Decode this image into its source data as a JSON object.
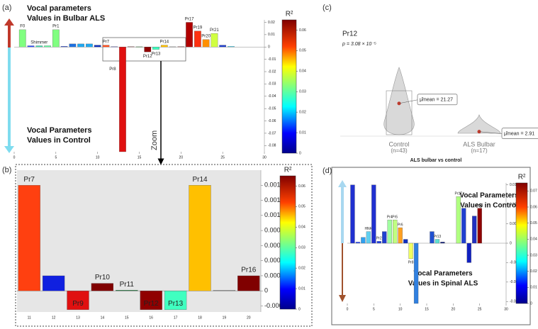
{
  "chart_data": [
    {
      "panel": "(a)",
      "type": "bar",
      "x": [
        1,
        2,
        3,
        4,
        5,
        6,
        7,
        8,
        9,
        10,
        11,
        12,
        13,
        14,
        15,
        16,
        17,
        18,
        19,
        20,
        21,
        22,
        23,
        24,
        25,
        26
      ],
      "values": [
        0.014,
        0.001,
        0.001,
        0.001,
        0.014,
        0.0005,
        0.0025,
        0.0025,
        0.0025,
        0.0015,
        0.0015,
        0.0003,
        -0.085,
        0.0003,
        0.0002,
        -0.004,
        -0.002,
        0.0015,
        0.0002,
        0.0003,
        0.02,
        0.013,
        0.006,
        0.011,
        0.0015,
        0.0005
      ],
      "colors": [
        "#80ff80",
        "#3050ff",
        "#40e0b0",
        "#60ffa0",
        "#80ff80",
        "#2040e0",
        "#1e70e0",
        "#20a8f0",
        "#20a8f0",
        "#1030c0",
        "#ff5020",
        "#2020e0",
        "#e01010",
        "#800000",
        "#40a040",
        "#900000",
        "#40ffc0",
        "#ffc000",
        "#a0a0a0",
        "#800000",
        "#b00000",
        "#ff3010",
        "#ff9000",
        "#d0ff40",
        "#2040d0",
        "#40e0ff"
      ],
      "labels": [
        "F0",
        null,
        "Shimmer",
        null,
        "Pr1",
        null,
        null,
        null,
        null,
        null,
        "Pr7",
        null,
        "Pr8",
        null,
        null,
        "Pr12",
        "Pr13",
        "Pr14",
        null,
        null,
        "Pr17",
        "Pr19",
        "Pr20",
        "Pr21",
        null,
        null
      ],
      "xlim": [
        0,
        30
      ],
      "xticks": [
        0,
        5,
        10,
        15,
        20,
        25,
        30
      ],
      "ylim": [
        -0.085,
        0.022
      ],
      "yticks": [
        0.02,
        0.01,
        0,
        -0.01,
        -0.02,
        -0.03,
        -0.04,
        -0.05,
        -0.06,
        -0.07,
        -0.08
      ],
      "annotations": [
        "Vocal parameters",
        "Values in Bulbar ALS",
        "Vocal Parameters",
        "Values in Control",
        "Zoom"
      ],
      "colorbar": {
        "label": "R²",
        "lim": [
          0,
          0.065
        ],
        "ticks": [
          0,
          0.01,
          0.02,
          0.03,
          0.04,
          0.05,
          0.06
        ]
      }
    },
    {
      "panel": "(b)",
      "type": "bar",
      "categories": [
        "11",
        "12",
        "13",
        "14",
        "15",
        "16",
        "17",
        "18",
        "19",
        "20"
      ],
      "values": [
        0.0014,
        0.0002,
        -0.00025,
        0.0001,
        1e-05,
        -0.00025,
        -0.00025,
        0.0014,
        1e-05,
        0.0002
      ],
      "colors": [
        "#ff4010",
        "#1020e0",
        "#e01010",
        "#800000",
        "#208040",
        "#900000",
        "#40ffc0",
        "#ffc000",
        "#a0a0a0",
        "#800000"
      ],
      "labels": [
        "Pr7",
        null,
        "Pr9",
        "Pr10",
        "Pr11",
        "Pr12",
        "Pr13",
        "Pr14",
        null,
        "Pr16"
      ],
      "ylim": [
        -0.00028,
        0.0016
      ],
      "yticks": [
        -0.0002,
        0,
        0.0002,
        0.0004,
        0.0006,
        0.0008,
        0.001,
        0.0012,
        0.0014
      ],
      "colorbar": {
        "label": "R²",
        "lim": [
          0,
          0.065
        ],
        "ticks": [
          0,
          0.01,
          0.02,
          0.03,
          0.04,
          0.05,
          0.06
        ]
      }
    },
    {
      "panel": "(c)",
      "type": "violin",
      "title": "Pr12",
      "subtitle": "p = 3.08 × 10⁻⁵",
      "categories": [
        "Control",
        "ALS Bulbar"
      ],
      "counts": [
        "(n=43)",
        "(n=17)"
      ],
      "values": [
        21.27,
        2.91
      ],
      "value_labels": [
        "μ̂mean = 21.27",
        "μ̂mean = 2.91"
      ],
      "xlabel": "ALS bulbar vs control",
      "ylim": [
        0,
        70
      ],
      "color": "#d9d9d9",
      "mean_color": "#c0392b"
    },
    {
      "panel": "(d)",
      "type": "bar",
      "x": [
        1,
        2,
        3,
        4,
        5,
        6,
        7,
        8,
        9,
        10,
        11,
        12,
        13,
        16,
        17,
        18,
        21,
        22,
        23,
        24,
        25
      ],
      "values": [
        0.015,
        0.0003,
        0.0015,
        0.003,
        0.015,
        0.0005,
        0.003,
        0.006,
        0.006,
        0.004,
        0.001,
        -0.004,
        -0.0155,
        0.003,
        0.001,
        0.0003,
        0.012,
        0.009,
        -0.005,
        0.007,
        0.009
      ],
      "colors": [
        "#2030d0",
        "#3050ff",
        "#30a0f0",
        "#60d0f0",
        "#2030d0",
        "#2040e0",
        "#2040d0",
        "#a0ffa0",
        "#c0ff80",
        "#ffa020",
        "#1030c0",
        "#f0ff60",
        "#3080e0",
        "#2050d0",
        "#60e0d0",
        "#102080",
        "#b0ff80",
        "#2040d0",
        "#1020c0",
        "#2030c0",
        "#900000"
      ],
      "labels": [
        null,
        null,
        null,
        "HNR",
        null,
        "Pr2",
        null,
        "Pr4",
        "Pr5",
        "Pr6",
        null,
        "Pr8",
        null,
        null,
        "Pr13",
        null,
        "Pr17",
        null,
        null,
        null,
        "Pr21"
      ],
      "xlim": [
        0,
        30
      ],
      "xticks": [
        0,
        5,
        10,
        15,
        20,
        25,
        30
      ],
      "ylim": [
        -0.0155,
        0.0155
      ],
      "yticks": [
        0.015,
        0.01,
        0.005,
        0,
        -0.005,
        -0.01,
        -0.015
      ],
      "annotations": [
        "Vocal Parameters",
        "Values in Control",
        "Vocal Parameters",
        "Values in Spinal ALS"
      ],
      "colorbar": {
        "label": "R²",
        "lim": [
          0,
          0.075
        ],
        "ticks": [
          0,
          0.01,
          0.02,
          0.03,
          0.04,
          0.05,
          0.06,
          0.07
        ]
      }
    }
  ]
}
